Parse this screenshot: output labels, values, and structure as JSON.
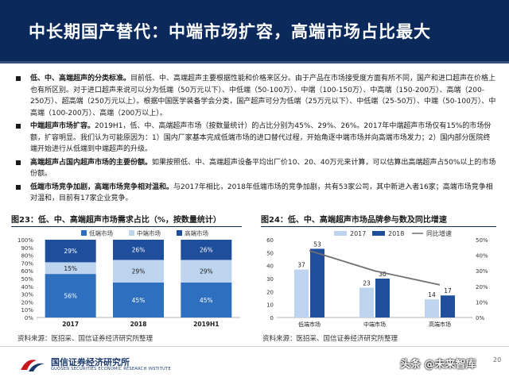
{
  "title": "中长期国产替代：中端市场扩容，高端市场占比最大",
  "bullets": [
    {
      "bold": "低、中、高端超声的分类标准。",
      "text": "目前低、中、高端超声主要根据性能和价格来区分。由于产品在市场接受度方面有所不同，国产和进口超声在价格上也有所区别。对于进口超声来说可以分为低端（50万元以下）、中低端（50-100万）、中端（100-150万）、中高端（150-200万）、高端（200-250万）、超高端（250万元以上）。根据中国医学装备学会分类，国产超声可分为低端（25万元以下）、中低端（25-50万）、中端（50-100万）、中高端（100-200万）、高端（200万以上）。"
    },
    {
      "bold": "中端超声市场扩容。",
      "text": "2019H1，低、中、高端超声市场（按数量统计）的占比分别为45%、29%、26%。2017年中端超声市场仅有15%的市场份额，扩容明显。我们认为可能原因为：1）国内厂家基本完成低端市场的进口替代过程，开始角逐中端市场并向高端市场发力；2）国内部分医院终端开始进行从低端到中端超声的升级。"
    },
    {
      "bold": "高端超声占国内超声市场的主要份额。",
      "text": "如果按照低、中、高端超声设备平均出厂价10、20、40万元来计算，可以估算出高端超声占50%以上的市场份额。"
    },
    {
      "bold": "低端市场竞争加剧，高端市场竞争相对温和。",
      "text": "与2017年相比，2018年低端市场的竞争加剧，共有53家公司，其中新进入者16家；高端市场竞争相对温和，目前有17家企业竞争。"
    }
  ],
  "figure1": {
    "title": "图23：低、中、高端超声市场需求占比（%，按数量统计）",
    "source": "资料来源：医招采、国信证券经济研究所整理"
  },
  "figure2": {
    "title": "图24：低、中、高端超声市场品牌参与数及同比增速",
    "source": "资料来源：医招采、国信证券经济研究所整理"
  },
  "footer": {
    "logo_cn": "国信证券经济研究所",
    "logo_en": "GUOSEN SECURITIES ECONOMIC RESEARCH INSTITUTE",
    "watermark": "头条 @未来智库",
    "page": "20"
  },
  "colors": {
    "navy": "#0b2a5b",
    "dark_blue": "#1f4e9c",
    "mid_blue": "#2e6fc0",
    "light_blue": "#bcd4ee",
    "gray_line": "#707070"
  },
  "chart_data": [
    {
      "type": "bar",
      "stacked": true,
      "categories": [
        "2017",
        "2018",
        "2019H1"
      ],
      "series": [
        {
          "name": "低端市场",
          "values": [
            56,
            45,
            45
          ]
        },
        {
          "name": "中端市场",
          "values": [
            15,
            29,
            29
          ]
        },
        {
          "name": "高端市场",
          "values": [
            29,
            26,
            26
          ]
        }
      ],
      "ylim": [
        0,
        100
      ],
      "yticks": [
        "0%",
        "10%",
        "20%",
        "30%",
        "40%",
        "50%",
        "60%",
        "70%",
        "80%",
        "90%",
        "100%"
      ],
      "legend": "top"
    },
    {
      "type": "bar",
      "categories": [
        "低端市场",
        "中端市场",
        "高端市场"
      ],
      "series": [
        {
          "name": "2017",
          "values": [
            37,
            23,
            14
          ]
        },
        {
          "name": "2018",
          "values": [
            53,
            30,
            17
          ]
        },
        {
          "name": "同比增速",
          "kind": "line",
          "axis": "right",
          "values": [
            43,
            30,
            21
          ]
        }
      ],
      "ylim": [
        0,
        60
      ],
      "yticks": [
        "0",
        "10",
        "20",
        "30",
        "40",
        "50",
        "60"
      ],
      "y2lim": [
        0,
        50
      ],
      "y2ticks": [
        "0%",
        "10%",
        "20%",
        "30%",
        "40%",
        "50%"
      ],
      "legend": "top"
    }
  ]
}
